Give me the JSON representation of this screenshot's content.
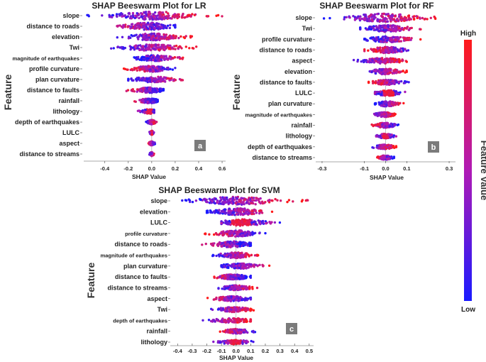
{
  "colors": {
    "low": "#1a1aff",
    "high": "#ff1a1a",
    "panel_tag_bg": "#7b7b7b"
  },
  "colorbar": {
    "high_label": "High",
    "low_label": "Low",
    "title": "Feature Value"
  },
  "chart_data": [
    {
      "type": "scatter",
      "subtype": "shap-beeswarm",
      "panel": "a",
      "title": "SHAP Beeswarm Plot for LR",
      "xlabel": "SHAP Value",
      "ylabel": "Feature",
      "xlim": [
        -0.58,
        0.63
      ],
      "xticks": [
        -0.4,
        -0.2,
        0.0,
        0.2,
        0.4,
        0.6
      ],
      "xtick_labels": [
        "-0.4",
        "-0.2",
        "0.0",
        "0.2",
        "0.4",
        "0.6"
      ],
      "features": [
        {
          "name": "slope",
          "min": -0.55,
          "max": 0.6,
          "spread": 1.0,
          "dir": 1
        },
        {
          "name": "distance to roads",
          "min": -0.45,
          "max": 0.2,
          "spread": 0.85,
          "dir": -1
        },
        {
          "name": "elevation",
          "min": -0.3,
          "max": 0.35,
          "spread": 0.8,
          "dir": 1
        },
        {
          "name": "Twi",
          "min": -0.4,
          "max": 0.38,
          "spread": 0.7,
          "dir": 1
        },
        {
          "name": "magnitude of earthquakes",
          "min": -0.15,
          "max": 0.35,
          "spread": 0.65,
          "dir": 1
        },
        {
          "name": "profile curvature",
          "min": -0.25,
          "max": 0.2,
          "spread": 0.65,
          "dir": -1
        },
        {
          "name": "plan curvature",
          "min": -0.2,
          "max": 0.35,
          "spread": 0.6,
          "dir": 1
        },
        {
          "name": "distance to faults",
          "min": -0.28,
          "max": 0.1,
          "spread": 0.55,
          "dir": -1
        },
        {
          "name": "rainfall",
          "min": -0.2,
          "max": 0.05,
          "spread": 0.5,
          "dir": -1
        },
        {
          "name": "lithology",
          "min": -0.18,
          "max": 0.02,
          "spread": 0.45,
          "dir": 0
        },
        {
          "name": "depth of earthquakes",
          "min": -0.05,
          "max": 0.05,
          "spread": 0.4,
          "dir": 1
        },
        {
          "name": "LULC",
          "min": -0.02,
          "max": 0.02,
          "spread": 0.35,
          "dir": 0
        },
        {
          "name": "aspect",
          "min": -0.03,
          "max": 0.03,
          "spread": 0.35,
          "dir": -1
        },
        {
          "name": "distance to streams",
          "min": -0.02,
          "max": 0.02,
          "spread": 0.3,
          "dir": 1
        }
      ]
    },
    {
      "type": "scatter",
      "subtype": "shap-beeswarm",
      "panel": "b",
      "title": "SHAP Beeswarm Plot for RF",
      "xlabel": "SHAP Value",
      "ylabel": "Feature",
      "xlim": [
        -0.33,
        0.33
      ],
      "xticks": [
        -0.3,
        -0.1,
        0.0,
        0.1,
        0.3
      ],
      "xtick_labels": [
        "-0.3",
        "-0.1",
        "0.0",
        "0.1",
        "0.3"
      ],
      "features": [
        {
          "name": "slope",
          "min": -0.3,
          "max": 0.25,
          "spread": 1.0,
          "dir": 1
        },
        {
          "name": "Twi",
          "min": -0.12,
          "max": 0.2,
          "spread": 0.8,
          "dir": 1
        },
        {
          "name": "profile curvature",
          "min": -0.1,
          "max": 0.2,
          "spread": 0.7,
          "dir": 1
        },
        {
          "name": "distance to roads",
          "min": -0.1,
          "max": 0.15,
          "spread": 0.7,
          "dir": -1
        },
        {
          "name": "aspect",
          "min": -0.18,
          "max": 0.1,
          "spread": 0.6,
          "dir": 1
        },
        {
          "name": "elevation",
          "min": -0.12,
          "max": 0.1,
          "spread": 0.6,
          "dir": 1
        },
        {
          "name": "distance to faults",
          "min": -0.08,
          "max": 0.12,
          "spread": 0.55,
          "dir": -1
        },
        {
          "name": "LULC",
          "min": -0.05,
          "max": 0.15,
          "spread": 0.6,
          "dir": 0
        },
        {
          "name": "plan curvature",
          "min": -0.05,
          "max": 0.1,
          "spread": 0.55,
          "dir": 1
        },
        {
          "name": "magnitude of earthquakes",
          "min": -0.08,
          "max": 0.05,
          "spread": 0.5,
          "dir": 1
        },
        {
          "name": "rainfall",
          "min": -0.08,
          "max": 0.06,
          "spread": 0.5,
          "dir": -1
        },
        {
          "name": "lithology",
          "min": -0.06,
          "max": 0.05,
          "spread": 0.45,
          "dir": 0
        },
        {
          "name": "depth of earthquakes",
          "min": -0.08,
          "max": 0.05,
          "spread": 0.45,
          "dir": 1
        },
        {
          "name": "distance to streams",
          "min": -0.05,
          "max": 0.04,
          "spread": 0.4,
          "dir": -1
        }
      ]
    },
    {
      "type": "scatter",
      "subtype": "shap-beeswarm",
      "panel": "c",
      "title": "SHAP Beeswarm Plot for SVM",
      "xlabel": "SHAP Value",
      "ylabel": "Feature",
      "xlim": [
        -0.45,
        0.53
      ],
      "xticks": [
        -0.4,
        -0.3,
        -0.2,
        -0.1,
        0.0,
        0.1,
        0.2,
        0.3,
        0.4,
        0.5
      ],
      "xtick_labels": [
        "-0.4",
        "-0.3",
        "-0.2",
        "-0.1",
        "0.0",
        "0.1",
        "0.2",
        "0.3",
        "0.4",
        "0.5"
      ],
      "features": [
        {
          "name": "slope",
          "min": -0.42,
          "max": 0.5,
          "spread": 1.0,
          "dir": 1
        },
        {
          "name": "elevation",
          "min": -0.2,
          "max": 0.3,
          "spread": 0.8,
          "dir": 1
        },
        {
          "name": "LULC",
          "min": -0.1,
          "max": 0.4,
          "spread": 0.75,
          "dir": 0
        },
        {
          "name": "profile curvature",
          "min": -0.22,
          "max": 0.2,
          "spread": 0.7,
          "dir": -1
        },
        {
          "name": "distance to roads",
          "min": -0.32,
          "max": 0.1,
          "spread": 0.65,
          "dir": -1
        },
        {
          "name": "magnitude of earthquakes",
          "min": -0.18,
          "max": 0.15,
          "spread": 0.6,
          "dir": 1
        },
        {
          "name": "plan curvature",
          "min": -0.1,
          "max": 0.3,
          "spread": 0.55,
          "dir": 1
        },
        {
          "name": "distance to faults",
          "min": -0.22,
          "max": 0.1,
          "spread": 0.55,
          "dir": -1
        },
        {
          "name": "distance to streams",
          "min": -0.12,
          "max": 0.15,
          "spread": 0.5,
          "dir": 1
        },
        {
          "name": "aspect",
          "min": -0.25,
          "max": 0.1,
          "spread": 0.5,
          "dir": -1
        },
        {
          "name": "Twi",
          "min": -0.22,
          "max": 0.12,
          "spread": 0.5,
          "dir": 1
        },
        {
          "name": "depth of earthquakes",
          "min": -0.3,
          "max": 0.1,
          "spread": 0.45,
          "dir": 1
        },
        {
          "name": "rainfall",
          "min": -0.12,
          "max": 0.15,
          "spread": 0.45,
          "dir": -1
        },
        {
          "name": "lithology",
          "min": -0.18,
          "max": 0.12,
          "spread": 0.4,
          "dir": 0
        }
      ]
    }
  ]
}
